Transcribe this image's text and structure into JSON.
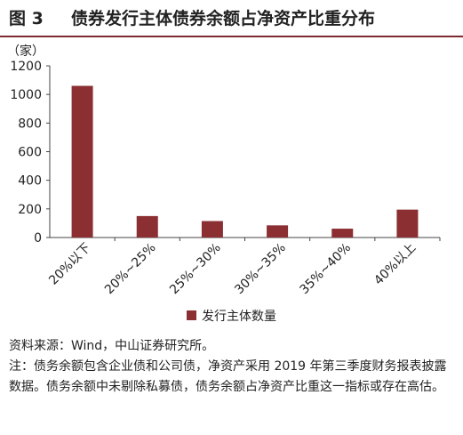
{
  "figure": {
    "label": "图 3",
    "title": "债券发行主体债券余额占净资产比重分布"
  },
  "chart_data": {
    "type": "bar",
    "unit_label": "（家）",
    "categories": [
      "20%以下",
      "20%~25%",
      "25%~30%",
      "30%~35%",
      "35%~40%",
      "40%以上"
    ],
    "series": [
      {
        "name": "发行主体数量",
        "values": [
          1060,
          150,
          115,
          85,
          62,
          195
        ]
      }
    ],
    "ylim": [
      0,
      1200
    ],
    "yticks": [
      0,
      200,
      400,
      600,
      800,
      1000,
      1200
    ],
    "bar_color": "#8b2f33",
    "legend_position": "bottom-center",
    "grid": false
  },
  "notes": {
    "source": "资料来源：Wind，中山证券研究所。",
    "note": "注：债务余额包含企业债和公司债，净资产采用 2019 年第三季度财务报表披露数据。债务余额中未剔除私募债，债务余额占净资产比重这一指标或存在高估。"
  }
}
